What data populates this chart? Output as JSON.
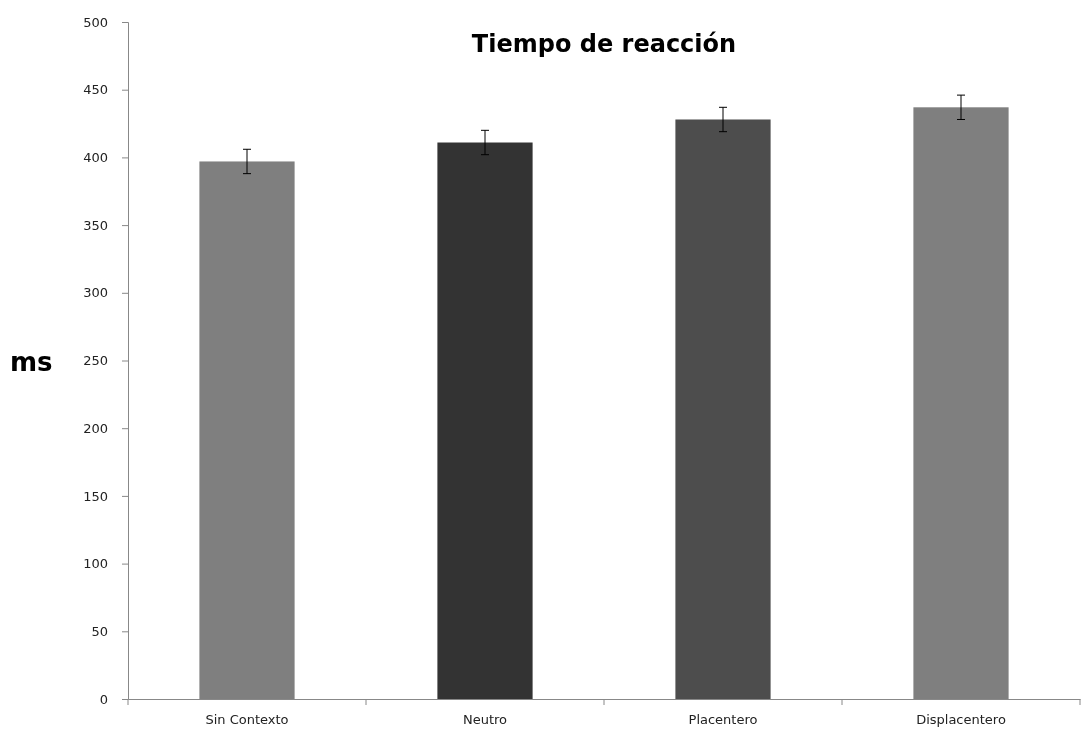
{
  "chart_data": {
    "type": "bar",
    "title": "Tiempo de reacción",
    "ylabel": "ms",
    "categories": [
      "Sin Contexto",
      "Neutro",
      "Placentero",
      "Displacentero"
    ],
    "values": [
      397,
      411,
      428,
      437
    ],
    "colors": [
      "#7f7f7f",
      "#333333",
      "#4d4d4d",
      "#7f7f7f"
    ],
    "errors": [
      9,
      9,
      9,
      9
    ],
    "ylim": [
      0,
      500
    ],
    "yticks": [
      0,
      50,
      100,
      150,
      200,
      250,
      300,
      350,
      400,
      450,
      500
    ],
    "grid": false
  }
}
